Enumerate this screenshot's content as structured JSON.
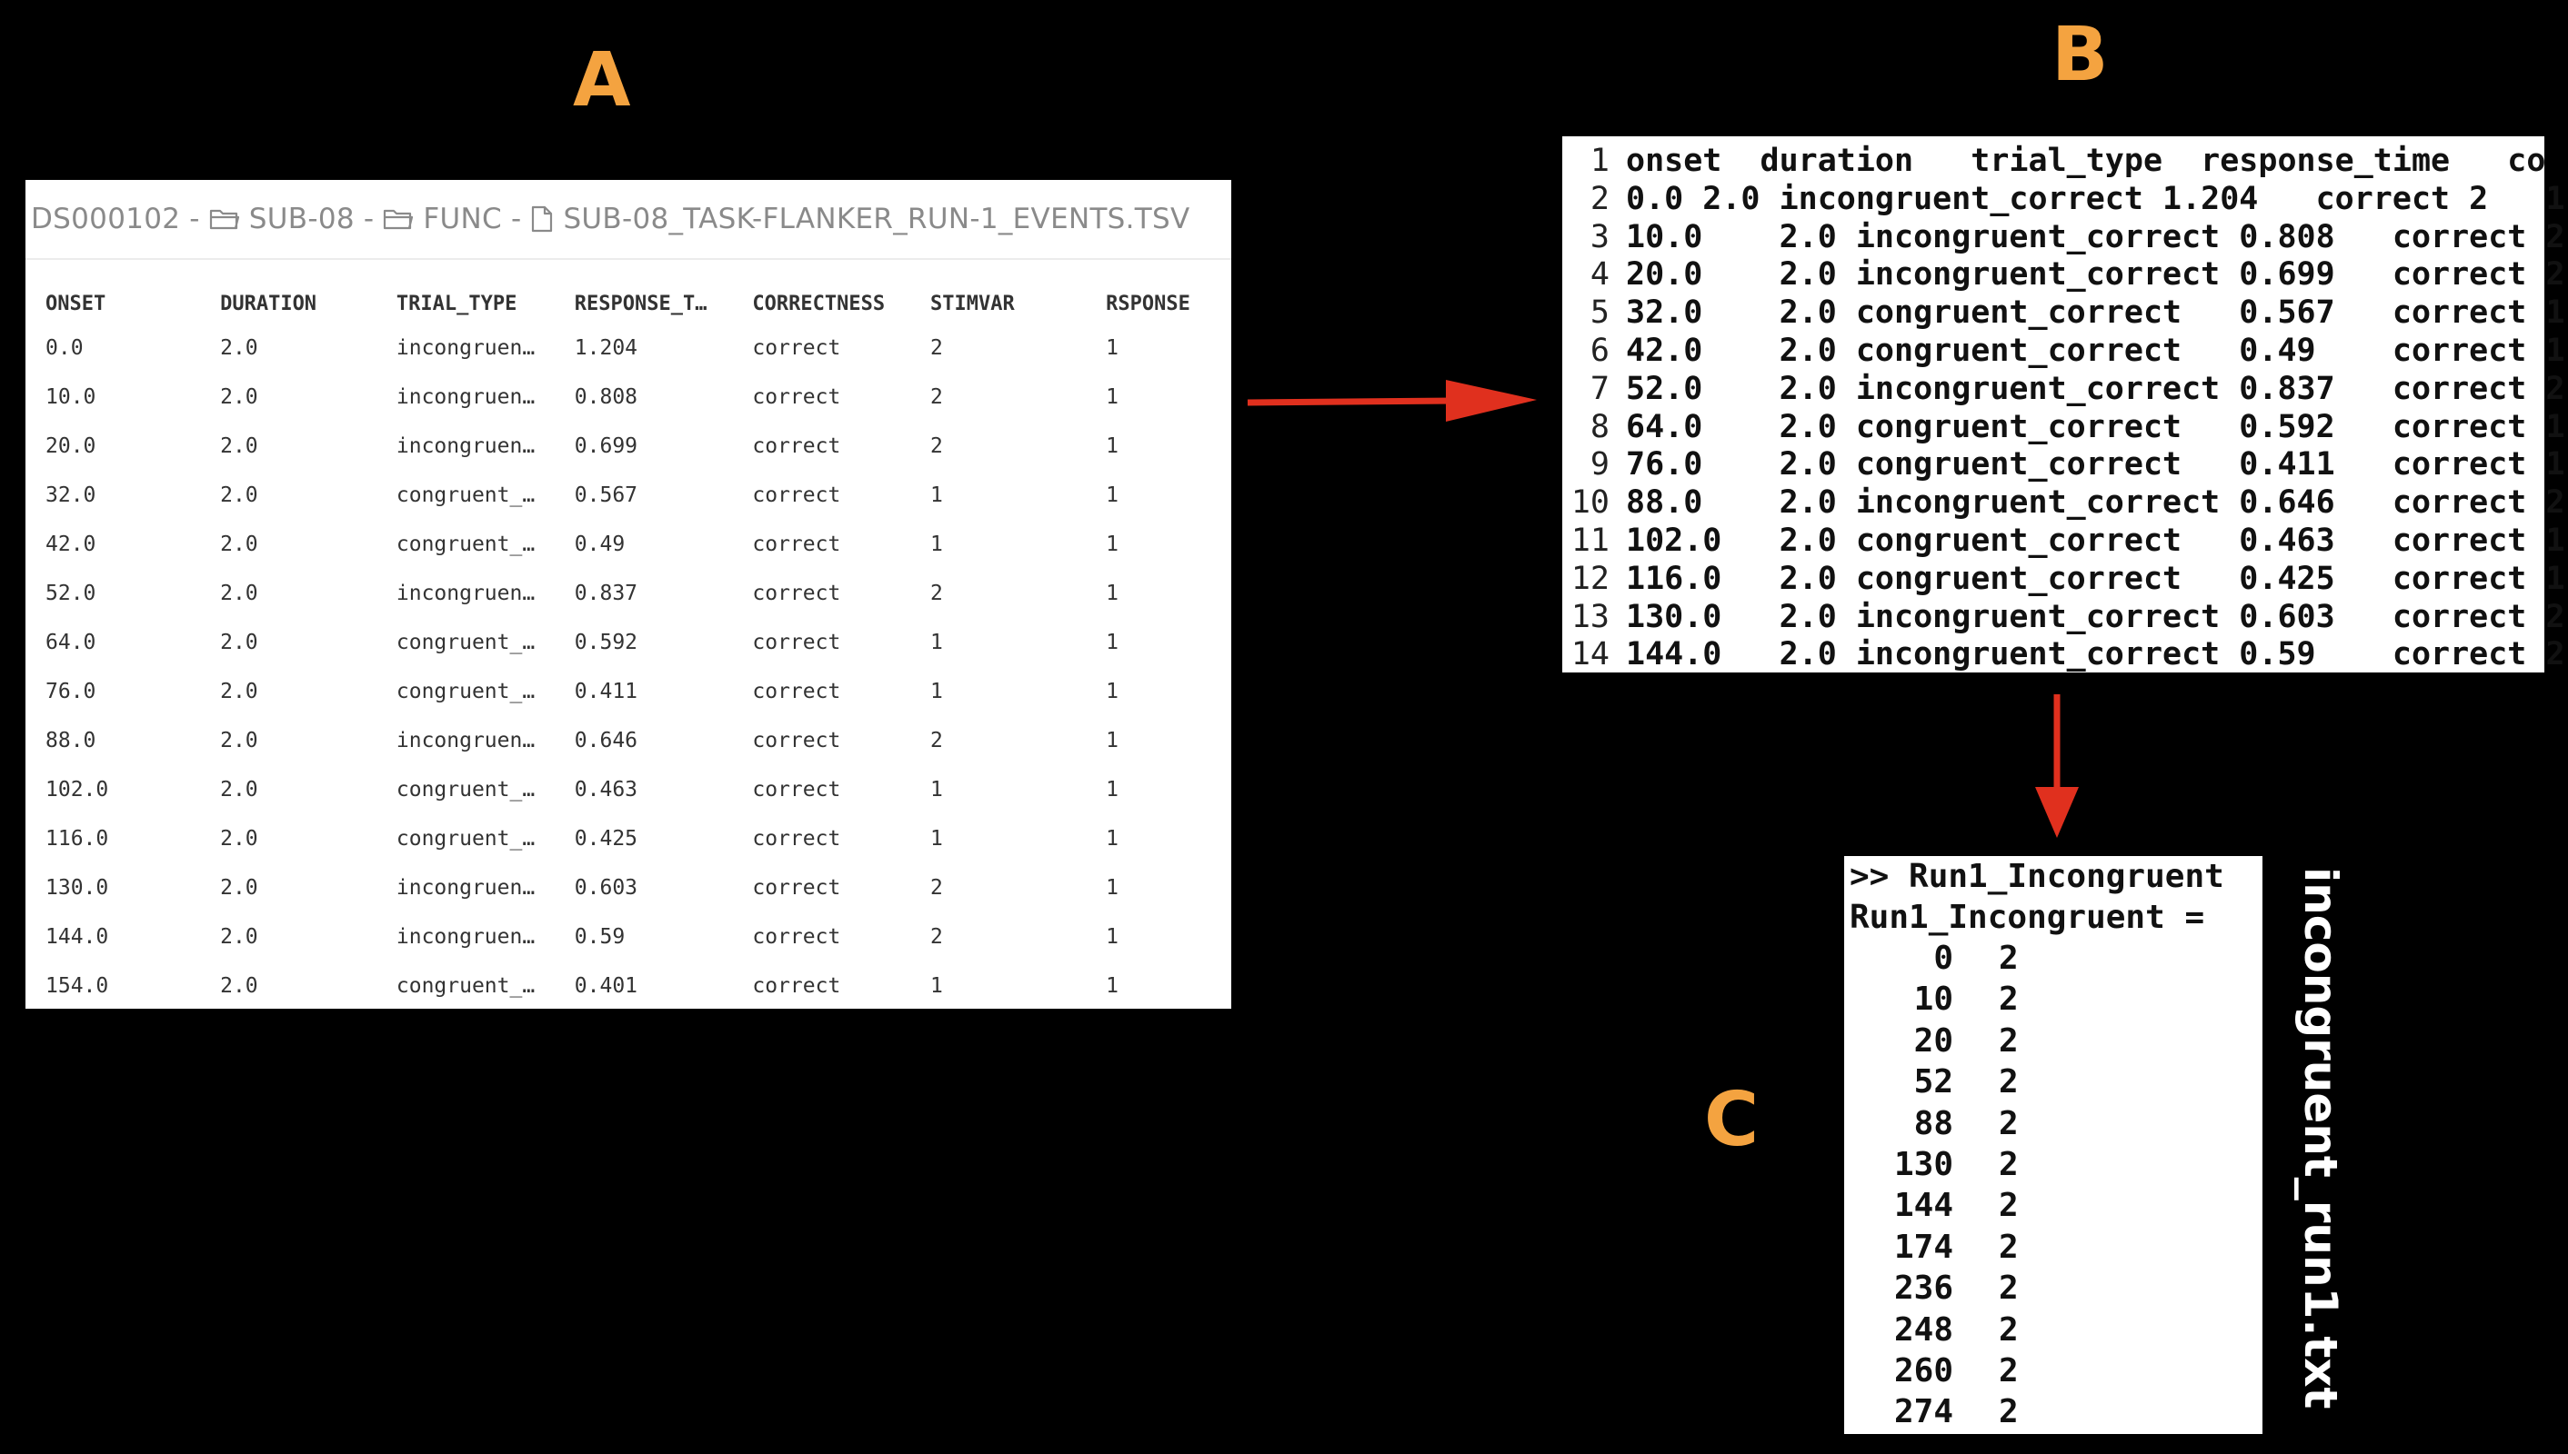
{
  "panel_labels": {
    "a": "A",
    "b": "B",
    "c": "C"
  },
  "panel_a": {
    "breadcrumb": {
      "dataset": "DS000102",
      "separator": "-",
      "subject": "SUB-08",
      "folder": "FUNC",
      "file": "SUB-08_TASK-FLANKER_RUN-1_EVENTS.TSV"
    },
    "columns": [
      "ONSET",
      "DURATION",
      "TRIAL_TYPE",
      "RESPONSE_T…",
      "CORRECTNESS",
      "STIMVAR",
      "RSPONSE"
    ],
    "rows": [
      [
        "0.0",
        "2.0",
        "incongruen…",
        "1.204",
        "correct",
        "2",
        "1"
      ],
      [
        "10.0",
        "2.0",
        "incongruen…",
        "0.808",
        "correct",
        "2",
        "1"
      ],
      [
        "20.0",
        "2.0",
        "incongruen…",
        "0.699",
        "correct",
        "2",
        "1"
      ],
      [
        "32.0",
        "2.0",
        "congruent_…",
        "0.567",
        "correct",
        "1",
        "1"
      ],
      [
        "42.0",
        "2.0",
        "congruent_…",
        "0.49",
        "correct",
        "1",
        "1"
      ],
      [
        "52.0",
        "2.0",
        "incongruen…",
        "0.837",
        "correct",
        "2",
        "1"
      ],
      [
        "64.0",
        "2.0",
        "congruent_…",
        "0.592",
        "correct",
        "1",
        "1"
      ],
      [
        "76.0",
        "2.0",
        "congruent_…",
        "0.411",
        "correct",
        "1",
        "1"
      ],
      [
        "88.0",
        "2.0",
        "incongruen…",
        "0.646",
        "correct",
        "2",
        "1"
      ],
      [
        "102.0",
        "2.0",
        "congruent_…",
        "0.463",
        "correct",
        "1",
        "1"
      ],
      [
        "116.0",
        "2.0",
        "congruent_…",
        "0.425",
        "correct",
        "1",
        "1"
      ],
      [
        "130.0",
        "2.0",
        "incongruen…",
        "0.603",
        "correct",
        "2",
        "1"
      ],
      [
        "144.0",
        "2.0",
        "incongruen…",
        "0.59",
        "correct",
        "2",
        "1"
      ],
      [
        "154.0",
        "2.0",
        "congruent_…",
        "0.401",
        "correct",
        "1",
        "1"
      ]
    ]
  },
  "panel_b": {
    "lines": [
      {
        "n": "1",
        "text": "onset  duration   trial_type  response_time   co"
      },
      {
        "n": "2",
        "text": "0.0 2.0 incongruent_correct 1.204   correct 2   1"
      },
      {
        "n": "3",
        "text": "10.0    2.0 incongruent_correct 0.808   correct 2"
      },
      {
        "n": "4",
        "text": "20.0    2.0 incongruent_correct 0.699   correct 2"
      },
      {
        "n": "5",
        "text": "32.0    2.0 congruent_correct   0.567   correct 1"
      },
      {
        "n": "6",
        "text": "42.0    2.0 congruent_correct   0.49    correct 1"
      },
      {
        "n": "7",
        "text": "52.0    2.0 incongruent_correct 0.837   correct 2"
      },
      {
        "n": "8",
        "text": "64.0    2.0 congruent_correct   0.592   correct 1"
      },
      {
        "n": "9",
        "text": "76.0    2.0 congruent_correct   0.411   correct 1"
      },
      {
        "n": "10",
        "text": "88.0    2.0 incongruent_correct 0.646   correct 2"
      },
      {
        "n": "11",
        "text": "102.0   2.0 congruent_correct   0.463   correct 1"
      },
      {
        "n": "12",
        "text": "116.0   2.0 congruent_correct   0.425   correct 1"
      },
      {
        "n": "13",
        "text": "130.0   2.0 incongruent_correct 0.603   correct 2"
      },
      {
        "n": "14",
        "text": "144.0   2.0 incongruent_correct 0.59    correct 2"
      }
    ]
  },
  "panel_c": {
    "command": ">> Run1_Incongruent",
    "assignment": "Run1_Incongruent =",
    "rows": [
      [
        "0",
        "2"
      ],
      [
        "10",
        "2"
      ],
      [
        "20",
        "2"
      ],
      [
        "52",
        "2"
      ],
      [
        "88",
        "2"
      ],
      [
        "130",
        "2"
      ],
      [
        "144",
        "2"
      ],
      [
        "174",
        "2"
      ],
      [
        "236",
        "2"
      ],
      [
        "248",
        "2"
      ],
      [
        "260",
        "2"
      ],
      [
        "274",
        "2"
      ]
    ]
  },
  "output_filename": "incongruent_run1.txt",
  "colors": {
    "background": "#000000",
    "panel_label": "#F4A340",
    "arrow": "#E0301E"
  },
  "icons": [
    "folder-icon",
    "file-icon",
    "arrow-right-icon",
    "arrow-down-icon"
  ]
}
